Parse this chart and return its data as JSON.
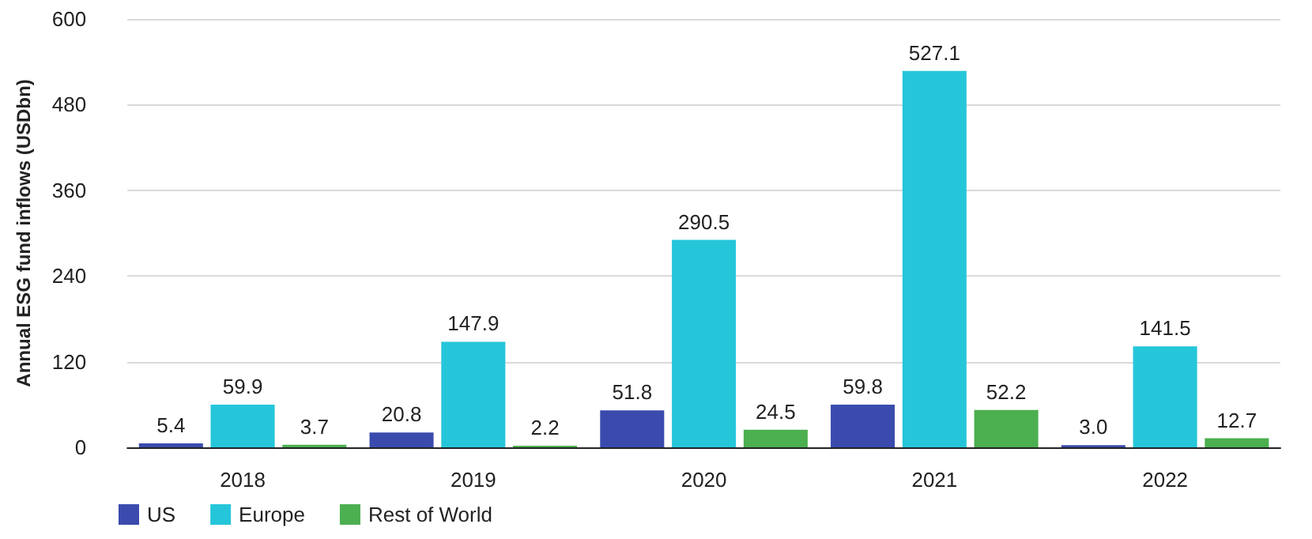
{
  "chart_data": {
    "type": "bar",
    "ylabel": "Annual ESG fund inflows (USDbn)",
    "categories": [
      "2018",
      "2019",
      "2020",
      "2021",
      "2022"
    ],
    "series": [
      {
        "name": "US",
        "color": "#3a4bad",
        "values": [
          5.4,
          20.8,
          51.8,
          59.8,
          3.0
        ],
        "value_labels": [
          "5.4",
          "20.8",
          "51.8",
          "59.8",
          "3.0"
        ]
      },
      {
        "name": "Europe",
        "color": "#26c6da",
        "values": [
          59.9,
          147.9,
          290.5,
          527.1,
          141.5
        ],
        "value_labels": [
          "59.9",
          "147.9",
          "290.5",
          "527.1",
          "141.5"
        ]
      },
      {
        "name": "Rest of World",
        "color": "#4caf50",
        "values": [
          3.7,
          2.2,
          24.5,
          52.2,
          12.7
        ],
        "value_labels": [
          "3.7",
          "2.2",
          "24.5",
          "52.2",
          "12.7"
        ]
      }
    ],
    "ylim": [
      0,
      600
    ],
    "yticks": [
      0,
      120,
      240,
      360,
      480,
      600
    ],
    "grid": "y",
    "legend": "bottom left"
  }
}
